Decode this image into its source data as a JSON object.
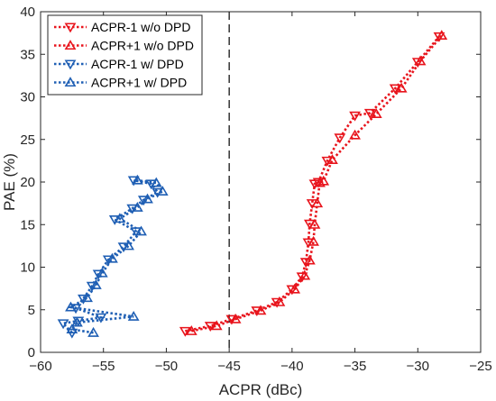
{
  "chart_data": {
    "type": "line",
    "xlabel": "ACPR (dBc)",
    "ylabel": "PAE (%)",
    "xlim": [
      -60,
      -25
    ],
    "ylim": [
      0,
      40
    ],
    "xticks": [
      -60,
      -55,
      -50,
      -45,
      -40,
      -35,
      -30,
      -25
    ],
    "yticks": [
      0,
      5,
      10,
      15,
      20,
      25,
      30,
      35,
      40
    ],
    "grid": false,
    "legend_position": "top-left",
    "reference_line": {
      "x": -45,
      "style": "dashed",
      "color": "#000000"
    },
    "series": [
      {
        "name": "ACPR-1 w/o DPD",
        "color": "#e8141c",
        "marker": "triangle-down",
        "x": [
          -48.5,
          -46.5,
          -44.8,
          -42.8,
          -41.2,
          -40.0,
          -39.2,
          -38.9,
          -38.7,
          -38.6,
          -38.4,
          -38.2,
          -37.9,
          -37.2,
          -36.2,
          -35.0,
          -33.8,
          -31.8,
          -30.0,
          -28.3
        ],
        "y": [
          2.5,
          3.1,
          3.9,
          4.9,
          5.9,
          7.4,
          8.9,
          10.6,
          12.9,
          15.1,
          17.5,
          19.8,
          20.0,
          22.5,
          25.2,
          27.8,
          28.1,
          31.0,
          34.1,
          37.1
        ]
      },
      {
        "name": "ACPR+1 w/o DPD",
        "color": "#e8141c",
        "marker": "triangle-up",
        "x": [
          -48.0,
          -46.0,
          -44.5,
          -42.5,
          -41.0,
          -39.8,
          -39.0,
          -38.6,
          -38.3,
          -38.2,
          -38.0,
          -37.8,
          -37.5,
          -36.8,
          -35.0,
          -33.3,
          -31.3,
          -29.8,
          -28.1
        ],
        "y": [
          2.5,
          3.1,
          3.9,
          4.9,
          5.9,
          7.4,
          9.0,
          10.8,
          13.0,
          15.0,
          17.5,
          19.9,
          20.1,
          22.6,
          25.5,
          28.0,
          31.0,
          34.2,
          37.2
        ]
      },
      {
        "name": "ACPR-1 w/ DPD",
        "color": "#1f5fb4",
        "marker": "triangle-down",
        "x": [
          -57.5,
          -58.2,
          -57.0,
          -55.2,
          -57.2,
          -56.6,
          -55.9,
          -55.4,
          -54.6,
          -53.4,
          -52.4,
          -54.1,
          -52.7,
          -51.8,
          -50.7,
          -51.2,
          -52.6
        ],
        "y": [
          2.3,
          3.4,
          3.7,
          4.1,
          5.2,
          6.3,
          7.8,
          9.2,
          10.9,
          12.4,
          14.2,
          15.6,
          16.9,
          17.9,
          18.8,
          19.8,
          20.2
        ]
      },
      {
        "name": "ACPR+1 w/ DPD",
        "color": "#1f5fb4",
        "marker": "triangle-up",
        "x": [
          -55.8,
          -57.5,
          -57.1,
          -52.6,
          -57.6,
          -56.3,
          -55.6,
          -55.1,
          -54.3,
          -53.0,
          -52.0,
          -53.7,
          -52.3,
          -51.5,
          -50.3,
          -50.8,
          -52.3
        ],
        "y": [
          2.3,
          2.7,
          3.5,
          4.2,
          5.3,
          6.4,
          7.9,
          9.3,
          11.0,
          12.5,
          14.2,
          15.7,
          17.0,
          18.0,
          18.9,
          19.9,
          20.2
        ]
      }
    ]
  }
}
